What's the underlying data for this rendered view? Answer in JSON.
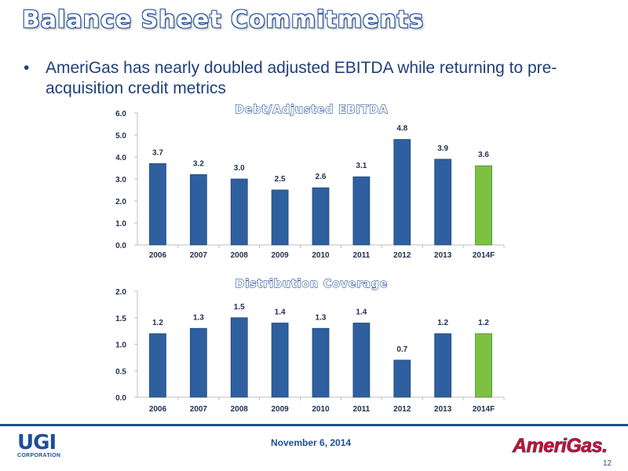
{
  "slide": {
    "title": "Balance Sheet Commitments",
    "bullet_symbol": "•",
    "bullet": "AmeriGas has nearly doubled adjusted EBITDA while returning to pre-acquisition credit metrics",
    "date": "November 6, 2014",
    "page_number": "12",
    "logos": {
      "ugi_big": "UGI",
      "ugi_small": "CORPORATION",
      "amerigas": "AmeriGas."
    }
  },
  "colors": {
    "bar_blue": "#2e5f9e",
    "bar_green": "#7cc142",
    "title_blue": "#1f4e9a"
  },
  "chart_data": [
    {
      "type": "bar",
      "title": "Debt/Adjusted EBITDA",
      "categories": [
        "2006",
        "2007",
        "2008",
        "2009",
        "2010",
        "2011",
        "2012",
        "2013",
        "2014F"
      ],
      "values": [
        3.7,
        3.2,
        3.0,
        2.5,
        2.6,
        3.1,
        4.8,
        3.9,
        3.6
      ],
      "data_labels": [
        "3.7",
        "3.2",
        "3.0",
        "2.5",
        "2.6",
        "3.1",
        "4.8",
        "3.9",
        "3.6"
      ],
      "yticks": [
        "0.0",
        "1.0",
        "2.0",
        "3.0",
        "4.0",
        "5.0",
        "6.0"
      ],
      "ylim": [
        0,
        6
      ],
      "highlight_category": "2014F",
      "grid": false,
      "xlabel": "",
      "ylabel": ""
    },
    {
      "type": "bar",
      "title": "Distribution Coverage",
      "categories": [
        "2006",
        "2007",
        "2008",
        "2009",
        "2010",
        "2011",
        "2012",
        "2013",
        "2014F"
      ],
      "values": [
        1.2,
        1.3,
        1.5,
        1.4,
        1.3,
        1.4,
        0.7,
        1.2,
        1.2
      ],
      "data_labels": [
        "1.2",
        "1.3",
        "1.5",
        "1.4",
        "1.3",
        "1.4",
        "0.7",
        "1.2",
        "1.2"
      ],
      "yticks": [
        "0.0",
        "0.5",
        "1.0",
        "1.5",
        "2.0"
      ],
      "ylim": [
        0,
        2
      ],
      "highlight_category": "2014F",
      "grid": false,
      "xlabel": "",
      "ylabel": ""
    }
  ]
}
